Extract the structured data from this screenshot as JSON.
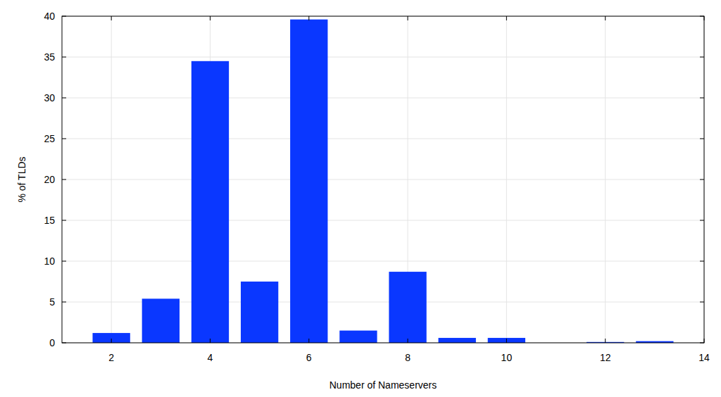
{
  "chart_data": {
    "type": "bar",
    "x_label": "Number of Nameservers",
    "y_label": "% of TLDs",
    "x": [
      2,
      3,
      4,
      5,
      6,
      7,
      8,
      9,
      10,
      12,
      13
    ],
    "values": [
      1.2,
      5.4,
      34.5,
      7.5,
      39.6,
      1.5,
      8.7,
      0.6,
      0.6,
      0.1,
      0.2
    ],
    "color": "#0a37ff",
    "xlim": [
      1,
      14
    ],
    "xticks": [
      2,
      4,
      6,
      8,
      10,
      12,
      14
    ],
    "ylim": [
      0,
      40
    ],
    "yticks": [
      0,
      5,
      10,
      15,
      20,
      25,
      30,
      35,
      40
    ],
    "grid": true
  }
}
